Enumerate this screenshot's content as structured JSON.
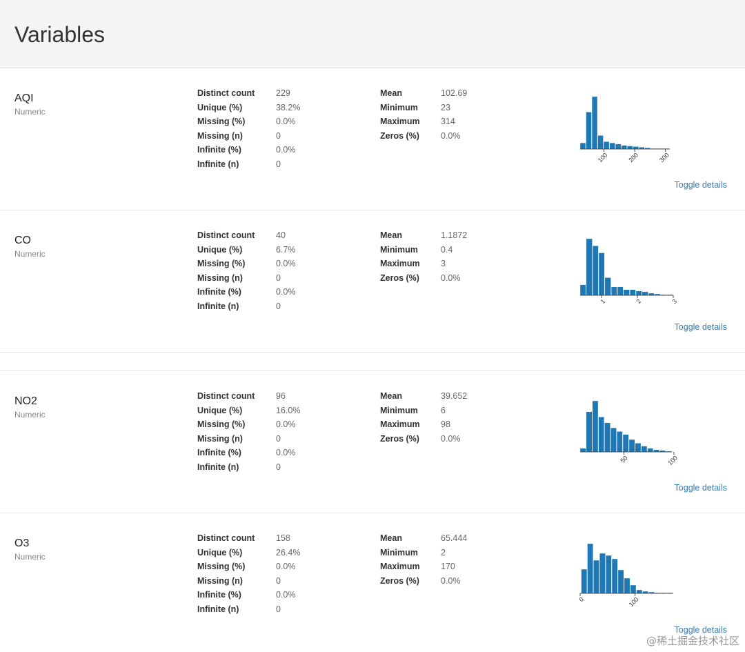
{
  "page": {
    "title": "Variables"
  },
  "variables": [
    {
      "name": "AQI",
      "type": "Numeric",
      "stats_left": [
        {
          "label": "Distinct count",
          "value": "229"
        },
        {
          "label": "Unique (%)",
          "value": "38.2%"
        },
        {
          "label": "Missing (%)",
          "value": "0.0%"
        },
        {
          "label": "Missing (n)",
          "value": "0"
        },
        {
          "label": "Infinite (%)",
          "value": "0.0%"
        },
        {
          "label": "Infinite (n)",
          "value": "0"
        }
      ],
      "stats_right": [
        {
          "label": "Mean",
          "value": "102.69"
        },
        {
          "label": "Minimum",
          "value": "23"
        },
        {
          "label": "Maximum",
          "value": "314"
        },
        {
          "label": "Zeros (%)",
          "value": "0.0%"
        }
      ],
      "toggle_label": "Toggle details"
    },
    {
      "name": "CO",
      "type": "Numeric",
      "stats_left": [
        {
          "label": "Distinct count",
          "value": "40"
        },
        {
          "label": "Unique (%)",
          "value": "6.7%"
        },
        {
          "label": "Missing (%)",
          "value": "0.0%"
        },
        {
          "label": "Missing (n)",
          "value": "0"
        },
        {
          "label": "Infinite (%)",
          "value": "0.0%"
        },
        {
          "label": "Infinite (n)",
          "value": "0"
        }
      ],
      "stats_right": [
        {
          "label": "Mean",
          "value": "1.1872"
        },
        {
          "label": "Minimum",
          "value": "0.4"
        },
        {
          "label": "Maximum",
          "value": "3"
        },
        {
          "label": "Zeros (%)",
          "value": "0.0%"
        }
      ],
      "toggle_label": "Toggle details"
    },
    {
      "name": "NO2",
      "type": "Numeric",
      "stats_left": [
        {
          "label": "Distinct count",
          "value": "96"
        },
        {
          "label": "Unique (%)",
          "value": "16.0%"
        },
        {
          "label": "Missing (%)",
          "value": "0.0%"
        },
        {
          "label": "Missing (n)",
          "value": "0"
        },
        {
          "label": "Infinite (%)",
          "value": "0.0%"
        },
        {
          "label": "Infinite (n)",
          "value": "0"
        }
      ],
      "stats_right": [
        {
          "label": "Mean",
          "value": "39.652"
        },
        {
          "label": "Minimum",
          "value": "6"
        },
        {
          "label": "Maximum",
          "value": "98"
        },
        {
          "label": "Zeros (%)",
          "value": "0.0%"
        }
      ],
      "toggle_label": "Toggle details"
    },
    {
      "name": "O3",
      "type": "Numeric",
      "stats_left": [
        {
          "label": "Distinct count",
          "value": "158"
        },
        {
          "label": "Unique (%)",
          "value": "26.4%"
        },
        {
          "label": "Missing (%)",
          "value": "0.0%"
        },
        {
          "label": "Missing (n)",
          "value": "0"
        },
        {
          "label": "Infinite (%)",
          "value": "0.0%"
        },
        {
          "label": "Infinite (n)",
          "value": "0"
        }
      ],
      "stats_right": [
        {
          "label": "Mean",
          "value": "65.444"
        },
        {
          "label": "Minimum",
          "value": "2"
        },
        {
          "label": "Maximum",
          "value": "170"
        },
        {
          "label": "Zeros (%)",
          "value": "0.0%"
        }
      ],
      "toggle_label": "Toggle details"
    }
  ],
  "chart_data": [
    {
      "type": "bar",
      "variable": "AQI",
      "bin_edges": [
        23,
        42.1,
        61.2,
        80.3,
        99.4,
        118.5,
        137.6,
        156.7,
        175.8,
        194.9,
        214,
        233.1,
        252.2,
        271.3,
        290.4,
        314
      ],
      "values": [
        10,
        60,
        85,
        22,
        12,
        10,
        8,
        6,
        5,
        4,
        3,
        2,
        1,
        1,
        1
      ],
      "x_ticks": [
        "100",
        "200",
        "300"
      ],
      "x_tick_values": [
        100,
        200,
        300
      ],
      "xlim": [
        23,
        314
      ],
      "color": "#1f77b4"
    },
    {
      "type": "bar",
      "variable": "CO",
      "bin_edges": [
        0.4,
        0.57,
        0.75,
        0.92,
        1.09,
        1.27,
        1.44,
        1.61,
        1.79,
        1.96,
        2.13,
        2.31,
        2.48,
        2.65,
        2.83,
        3.0
      ],
      "values": [
        15,
        80,
        70,
        60,
        25,
        12,
        12,
        8,
        8,
        6,
        5,
        3,
        2,
        1,
        1
      ],
      "x_ticks": [
        "1",
        "2",
        "3"
      ],
      "x_tick_values": [
        1,
        2,
        3
      ],
      "xlim": [
        0.4,
        3
      ],
      "color": "#1f77b4"
    },
    {
      "type": "bar",
      "variable": "NO2",
      "bin_edges": [
        6,
        12.1,
        18.3,
        24.4,
        30.5,
        36.7,
        42.8,
        48.9,
        55.1,
        61.2,
        67.3,
        73.5,
        79.6,
        85.7,
        91.9,
        98
      ],
      "values": [
        5,
        55,
        70,
        48,
        40,
        33,
        28,
        24,
        17,
        12,
        8,
        5,
        3,
        2,
        1
      ],
      "x_ticks": [
        "50",
        "100"
      ],
      "x_tick_values": [
        50,
        100
      ],
      "xlim": [
        6,
        98
      ],
      "color": "#1f77b4"
    },
    {
      "type": "bar",
      "variable": "O3",
      "bin_edges": [
        2,
        13.2,
        24.4,
        35.6,
        46.8,
        58,
        69.2,
        80.4,
        91.6,
        102.8,
        114,
        125.2,
        136.4,
        147.6,
        158.8,
        170
      ],
      "values": [
        35,
        72,
        48,
        58,
        55,
        50,
        34,
        22,
        12,
        5,
        3,
        2,
        1,
        1,
        1
      ],
      "x_ticks": [
        "0",
        "100"
      ],
      "x_tick_values": [
        0,
        100
      ],
      "xlim": [
        0,
        170
      ],
      "color": "#1f77b4"
    }
  ],
  "watermark": "@稀土掘金技术社区"
}
